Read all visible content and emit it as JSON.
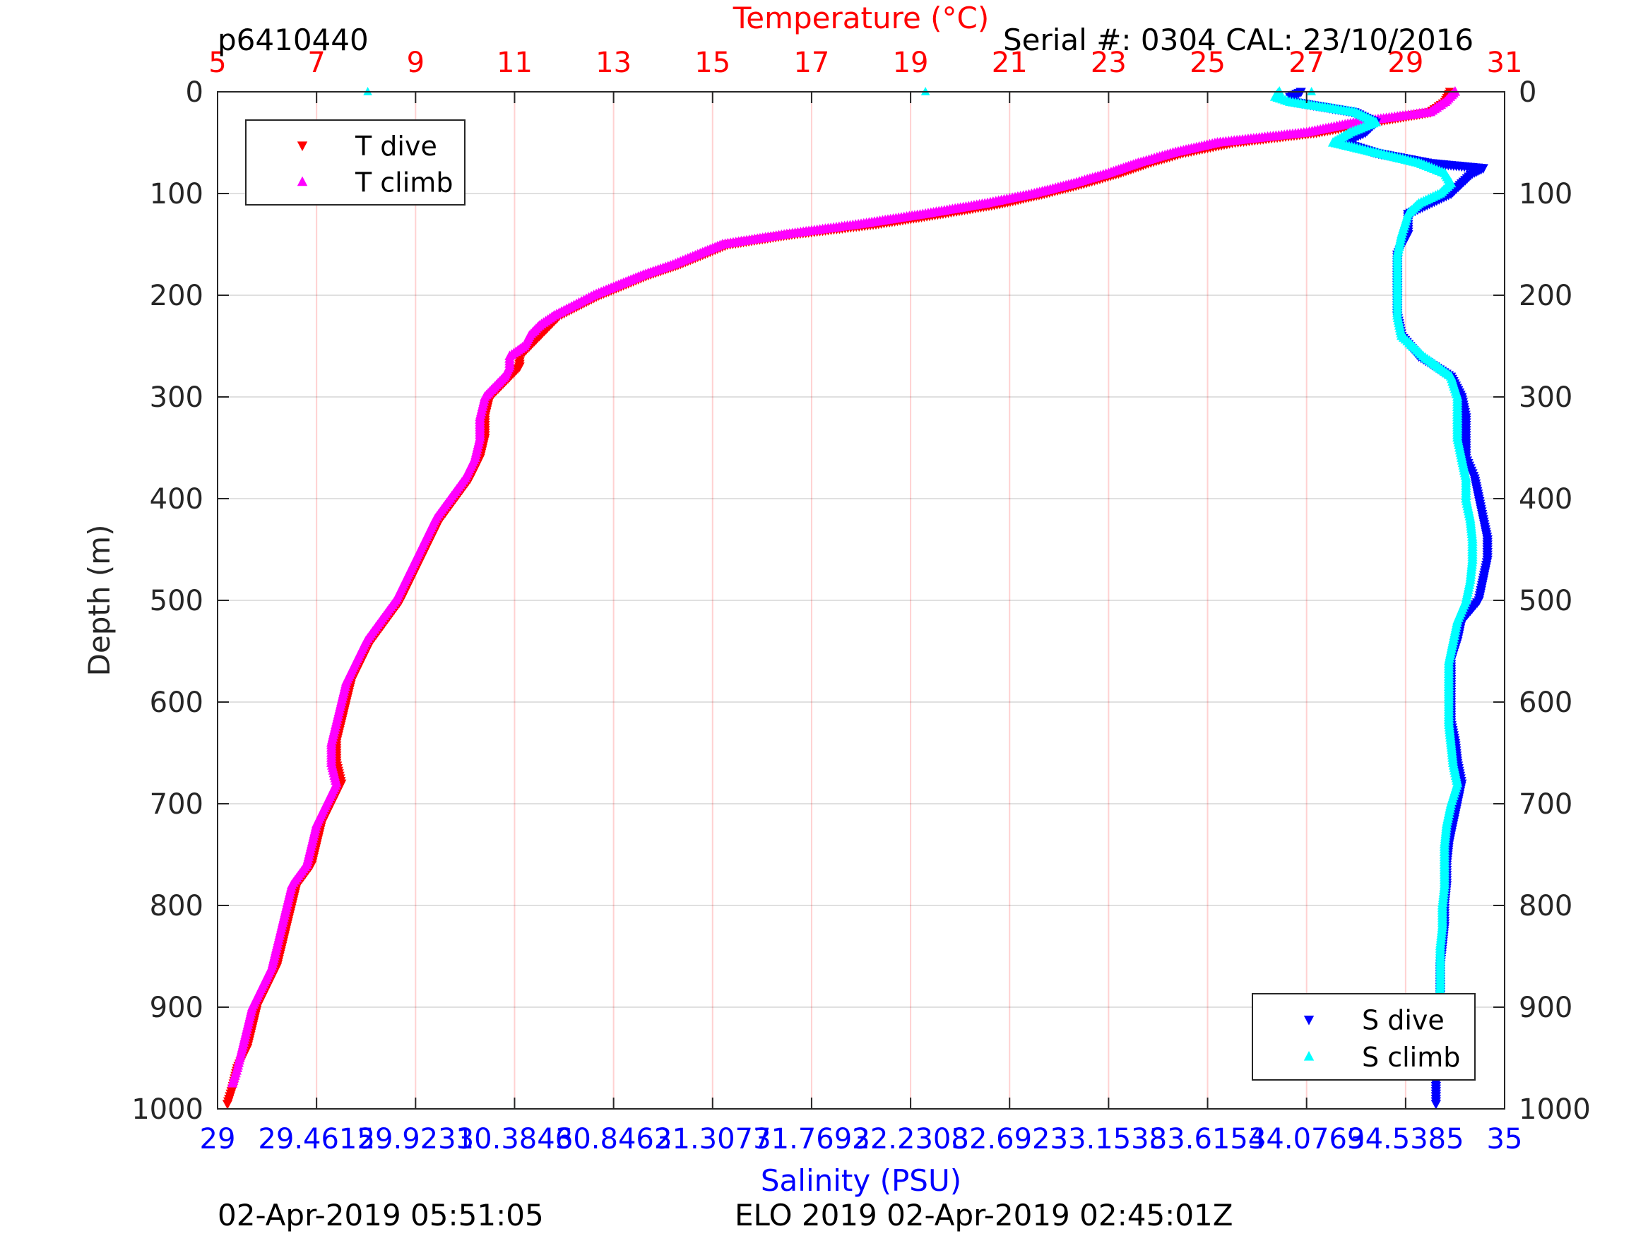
{
  "header": {
    "profile_id": "p6410440",
    "serial_cal": "Serial #: 0304  CAL: 23/10/2016",
    "timestamp_left": "02-Apr-2019 05:51:05",
    "mission_stamp": "ELO 2019 02-Apr-2019 02:45:01Z"
  },
  "chart_data": {
    "type": "scatter",
    "title": "",
    "temperature_axis": {
      "label": "Temperature (°C)",
      "range": [
        5,
        31
      ],
      "ticks": [
        5,
        7,
        9,
        11,
        13,
        15,
        17,
        19,
        21,
        23,
        25,
        27,
        29,
        31
      ],
      "color": "#ff0000"
    },
    "salinity_axis": {
      "label": "Salinity (PSU)",
      "range": [
        29,
        35
      ],
      "ticks": [
        29,
        29.4615,
        29.9231,
        30.3846,
        30.8462,
        31.3077,
        31.7692,
        32.2308,
        32.6923,
        33.1538,
        33.6154,
        34.0769,
        34.5385,
        35
      ],
      "tick_labels": [
        "29",
        "29.4615",
        "29.9231",
        "30.3846",
        "30.8462",
        "31.3077",
        "31.7692",
        "32.2308",
        "32.6923",
        "33.1538",
        "33.6154",
        "34.0769",
        "34.5385",
        "35"
      ],
      "color": "#0000ff"
    },
    "depth_axis": {
      "label": "Depth (m)",
      "range": [
        0,
        1000
      ],
      "reversed": true,
      "ticks": [
        0,
        100,
        200,
        300,
        400,
        500,
        600,
        700,
        800,
        900,
        1000
      ]
    },
    "grid": true,
    "legend_top": {
      "placement": "top-left",
      "entries": [
        "T dive",
        "T climb"
      ]
    },
    "legend_bottom": {
      "placement": "bottom-right",
      "entries": [
        "S dive",
        "S climb"
      ]
    },
    "series": [
      {
        "name": "T dive",
        "variable": "temperature",
        "marker": "triangle-down",
        "color": "#ff0000",
        "depth": [
          0,
          10,
          20,
          30,
          40,
          50,
          60,
          70,
          80,
          90,
          100,
          110,
          120,
          130,
          140,
          150,
          160,
          170,
          180,
          190,
          200,
          210,
          220,
          230,
          240,
          250,
          260,
          270,
          280,
          290,
          300,
          320,
          340,
          360,
          380,
          400,
          420,
          440,
          460,
          480,
          500,
          520,
          540,
          560,
          580,
          600,
          620,
          640,
          660,
          680,
          700,
          720,
          740,
          760,
          780,
          800,
          820,
          840,
          860,
          880,
          900,
          920,
          940,
          960,
          980,
          995
        ],
        "temp": [
          29.9,
          29.8,
          29.5,
          28.3,
          27.2,
          25.5,
          24.5,
          23.8,
          23.2,
          22.5,
          21.7,
          20.8,
          19.6,
          18.3,
          16.6,
          15.3,
          14.8,
          14.3,
          13.7,
          13.2,
          12.7,
          12.3,
          11.9,
          11.7,
          11.5,
          11.3,
          11.1,
          11.1,
          10.9,
          10.7,
          10.5,
          10.4,
          10.4,
          10.3,
          10.1,
          9.8,
          9.5,
          9.3,
          9.1,
          8.9,
          8.7,
          8.4,
          8.1,
          7.9,
          7.7,
          7.6,
          7.5,
          7.4,
          7.4,
          7.5,
          7.3,
          7.1,
          7.0,
          6.9,
          6.6,
          6.5,
          6.4,
          6.3,
          6.2,
          6.0,
          5.8,
          5.7,
          5.6,
          5.4,
          5.3,
          5.2
        ]
      },
      {
        "name": "T climb",
        "variable": "temperature",
        "marker": "triangle-up",
        "color": "#ff00ff",
        "depth": [
          0,
          10,
          20,
          30,
          40,
          50,
          60,
          70,
          80,
          90,
          100,
          110,
          120,
          130,
          140,
          150,
          160,
          170,
          180,
          190,
          200,
          210,
          220,
          230,
          240,
          250,
          260,
          270,
          280,
          290,
          300,
          320,
          340,
          360,
          380,
          400,
          420,
          440,
          460,
          480,
          500,
          520,
          540,
          560,
          580,
          600,
          620,
          640,
          660,
          680,
          700,
          720,
          740,
          760,
          780,
          800,
          820,
          840,
          860,
          880,
          900,
          920,
          940,
          960,
          975
        ],
        "temp": [
          30.0,
          29.8,
          29.5,
          28.0,
          27.0,
          25.2,
          24.3,
          23.6,
          23.0,
          22.3,
          21.5,
          20.5,
          19.3,
          18.0,
          16.5,
          15.2,
          14.7,
          14.2,
          13.6,
          13.1,
          12.6,
          12.2,
          11.8,
          11.5,
          11.3,
          11.2,
          10.9,
          10.9,
          10.8,
          10.6,
          10.4,
          10.3,
          10.3,
          10.2,
          10.0,
          9.7,
          9.4,
          9.2,
          9.0,
          8.8,
          8.6,
          8.3,
          8.0,
          7.8,
          7.6,
          7.5,
          7.4,
          7.3,
          7.3,
          7.4,
          7.2,
          7.0,
          6.9,
          6.8,
          6.5,
          6.4,
          6.3,
          6.2,
          6.1,
          5.9,
          5.7,
          5.6,
          5.5,
          5.4,
          5.3
        ]
      },
      {
        "name": "S dive",
        "variable": "salinity",
        "marker": "triangle-down",
        "color": "#0000ff",
        "depth": [
          0,
          5,
          10,
          20,
          30,
          40,
          50,
          60,
          70,
          75,
          80,
          90,
          100,
          110,
          120,
          140,
          160,
          180,
          200,
          220,
          240,
          260,
          280,
          300,
          320,
          340,
          360,
          380,
          400,
          420,
          440,
          460,
          480,
          500,
          520,
          540,
          560,
          580,
          600,
          620,
          640,
          660,
          680,
          700,
          720,
          740,
          760,
          780,
          800,
          820,
          840,
          860,
          880,
          900,
          920,
          940,
          960,
          980,
          995
        ],
        "sal": [
          34.05,
          34.0,
          34.02,
          34.3,
          34.4,
          34.35,
          34.25,
          34.4,
          34.65,
          34.9,
          34.85,
          34.8,
          34.75,
          34.65,
          34.55,
          34.55,
          34.5,
          34.5,
          34.5,
          34.5,
          34.52,
          34.6,
          34.75,
          34.8,
          34.82,
          34.82,
          34.82,
          34.86,
          34.88,
          34.9,
          34.92,
          34.92,
          34.9,
          34.88,
          34.8,
          34.78,
          34.75,
          34.75,
          34.75,
          34.75,
          34.77,
          34.78,
          34.8,
          34.78,
          34.76,
          34.74,
          34.73,
          34.73,
          34.72,
          34.72,
          34.71,
          34.7,
          34.7,
          34.7,
          34.68,
          34.68,
          34.68,
          34.68,
          34.68
        ]
      },
      {
        "name": "S climb",
        "variable": "salinity",
        "marker": "triangle-up",
        "color": "#00ffff",
        "depth": [
          0,
          5,
          10,
          20,
          30,
          40,
          50,
          60,
          70,
          80,
          90,
          100,
          110,
          120,
          140,
          160,
          180,
          200,
          220,
          240,
          260,
          280,
          300,
          320,
          340,
          360,
          380,
          400,
          420,
          440,
          460,
          480,
          500,
          520,
          540,
          560,
          580,
          600,
          620,
          640,
          660,
          680,
          700,
          720,
          740,
          760,
          780,
          800,
          820,
          840,
          860,
          880,
          900,
          920,
          940
        ],
        "sal": [
          33.95,
          33.93,
          34.0,
          34.3,
          34.4,
          34.28,
          34.2,
          34.4,
          34.6,
          34.72,
          34.75,
          34.7,
          34.6,
          34.55,
          34.52,
          34.5,
          34.5,
          34.5,
          34.5,
          34.52,
          34.62,
          34.75,
          34.78,
          34.78,
          34.78,
          34.8,
          34.82,
          34.82,
          34.84,
          34.85,
          34.85,
          34.84,
          34.82,
          34.78,
          34.76,
          34.74,
          34.74,
          34.74,
          34.74,
          34.75,
          34.76,
          34.78,
          34.75,
          34.73,
          34.72,
          34.72,
          34.72,
          34.71,
          34.71,
          34.7,
          34.7,
          34.7,
          34.69,
          34.69,
          34.69
        ]
      },
      {
        "name": "",
        "variable": "salinity",
        "marker": "triangle-up",
        "color": "#00ffff",
        "depth": [
          0,
          0,
          0
        ],
        "sal": [
          29.7,
          32.3,
          34.1
        ]
      }
    ]
  }
}
